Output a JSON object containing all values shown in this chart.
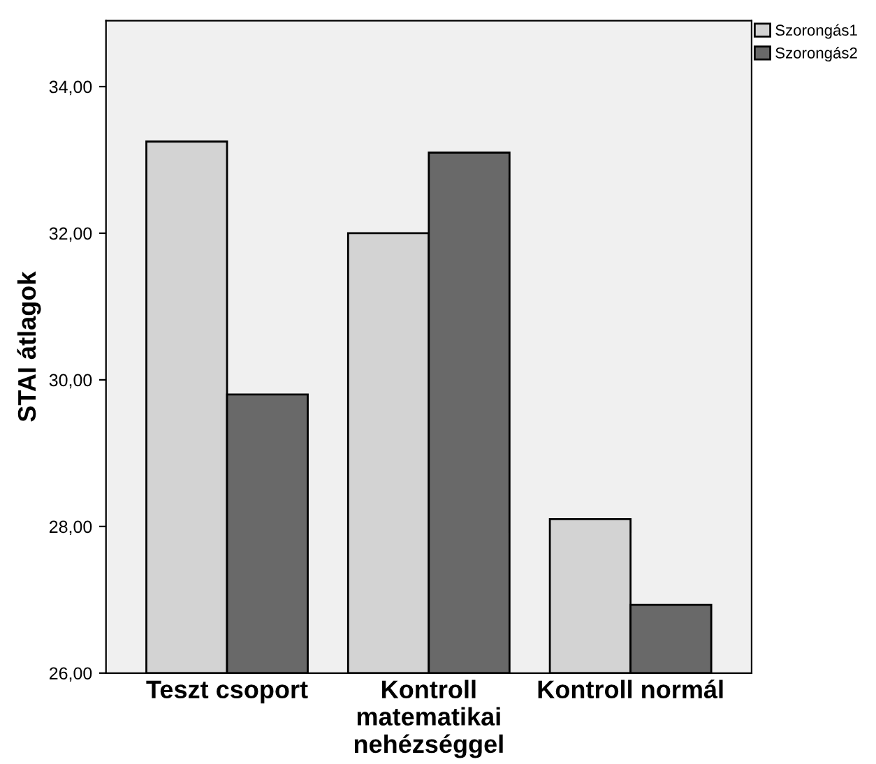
{
  "chart_data": {
    "type": "bar",
    "ylabel": "STAI átlagok",
    "categories": [
      "Teszt csoport",
      "Kontroll\nmatematikai\nnehézséggel",
      "Kontroll normál"
    ],
    "series": [
      {
        "name": "Szorongás1",
        "color": "#d3d3d3",
        "values": [
          33.25,
          32.0,
          28.1
        ]
      },
      {
        "name": "Szorongás2",
        "color": "#696969",
        "values": [
          29.8,
          33.1,
          26.93
        ]
      }
    ],
    "ylim": [
      26,
      34.9
    ],
    "yticks": [
      {
        "value": 26,
        "label": "26,00"
      },
      {
        "value": 28,
        "label": "28,00"
      },
      {
        "value": 30,
        "label": "30,00"
      },
      {
        "value": 32,
        "label": "32,00"
      },
      {
        "value": 34,
        "label": "34,00"
      }
    ],
    "legend": "top right",
    "grid": false
  }
}
